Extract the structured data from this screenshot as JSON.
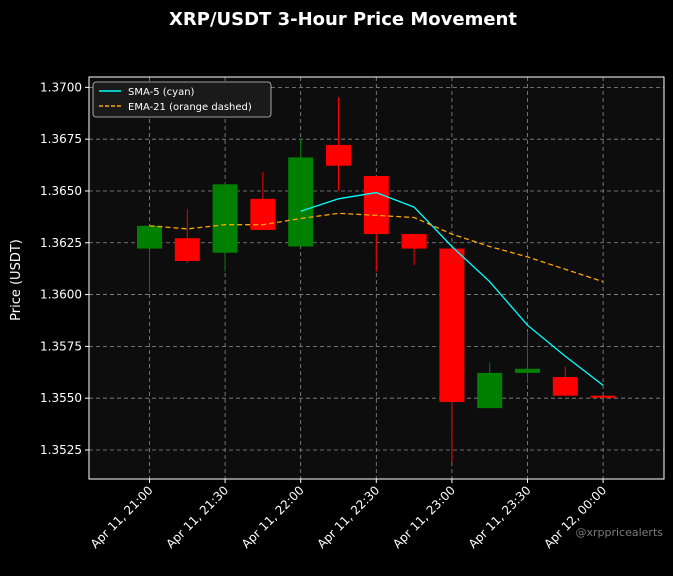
{
  "chart_data": {
    "type": "candlestick",
    "title": "XRP/USDT 3-Hour Price Movement",
    "ylabel": "Price (USDT)",
    "xlabel": "",
    "ylim": [
      1.3511,
      1.3705
    ],
    "yticks": [
      "1.3525",
      "1.3550",
      "1.3575",
      "1.3600",
      "1.3625",
      "1.3650",
      "1.3675",
      "1.3700"
    ],
    "xticks": [
      "Apr 11, 21:00",
      "Apr 11, 21:30",
      "Apr 11, 22:00",
      "Apr 11, 22:30",
      "Apr 11, 23:00",
      "Apr 11, 23:30",
      "Apr 12, 00:00"
    ],
    "grid": true,
    "legend_position": "top-left",
    "colors": {
      "up": "#008000",
      "down": "#ff0000",
      "sma": "#00ffff",
      "ema": "#ffa500",
      "background": "#000000",
      "plot_bg": "#0d0d0d"
    },
    "candles": [
      {
        "t": "Apr 11, 21:00",
        "open": 1.36222,
        "high": 1.36332,
        "low": 1.36012,
        "close": 1.36332
      },
      {
        "t": "Apr 11, 21:15",
        "open": 1.36272,
        "high": 1.36412,
        "low": 1.36152,
        "close": 1.36162
      },
      {
        "t": "Apr 11, 21:30",
        "open": 1.36202,
        "high": 1.36542,
        "low": 1.36112,
        "close": 1.36532
      },
      {
        "t": "Apr 11, 21:45",
        "open": 1.36462,
        "high": 1.36592,
        "low": 1.36312,
        "close": 1.36312
      },
      {
        "t": "Apr 11, 22:00",
        "open": 1.36232,
        "high": 1.36752,
        "low": 1.36232,
        "close": 1.36662
      },
      {
        "t": "Apr 11, 22:15",
        "open": 1.36722,
        "high": 1.36952,
        "low": 1.36502,
        "close": 1.36622
      },
      {
        "t": "Apr 11, 22:30",
        "open": 1.36572,
        "high": 1.36572,
        "low": 1.36112,
        "close": 1.36292
      },
      {
        "t": "Apr 11, 22:45",
        "open": 1.36292,
        "high": 1.36292,
        "low": 1.36142,
        "close": 1.36222
      },
      {
        "t": "Apr 11, 23:00",
        "open": 1.36222,
        "high": 1.36222,
        "low": 1.35192,
        "close": 1.35482
      },
      {
        "t": "Apr 11, 23:15",
        "open": 1.35452,
        "high": 1.35672,
        "low": 1.35452,
        "close": 1.35622
      },
      {
        "t": "Apr 11, 23:30",
        "open": 1.35622,
        "high": 1.35822,
        "low": 1.35572,
        "close": 1.35642
      },
      {
        "t": "Apr 11, 23:45",
        "open": 1.35602,
        "high": 1.35652,
        "low": 1.35512,
        "close": 1.35512
      },
      {
        "t": "Apr 12, 00:00",
        "open": 1.35512,
        "high": 1.35512,
        "low": 1.35502,
        "close": 1.35502
      }
    ],
    "series": [
      {
        "name": "SMA-5 (cyan)",
        "style": "solid",
        "color": "#00ffff",
        "start_index": 4,
        "values": [
          1.36402,
          1.36462,
          1.36492,
          1.36422,
          1.36232,
          1.36062,
          1.35852,
          1.35702,
          1.35562
        ]
      },
      {
        "name": "EMA-21 (orange dashed)",
        "style": "dashed",
        "color": "#ffa500",
        "start_index": 0,
        "values": [
          1.36332,
          1.36317,
          1.36337,
          1.36337,
          1.36367,
          1.36392,
          1.36382,
          1.36372,
          1.36292,
          1.36232,
          1.36182,
          1.36122,
          1.36062
        ]
      }
    ],
    "watermark": "@xrppricealerts"
  }
}
